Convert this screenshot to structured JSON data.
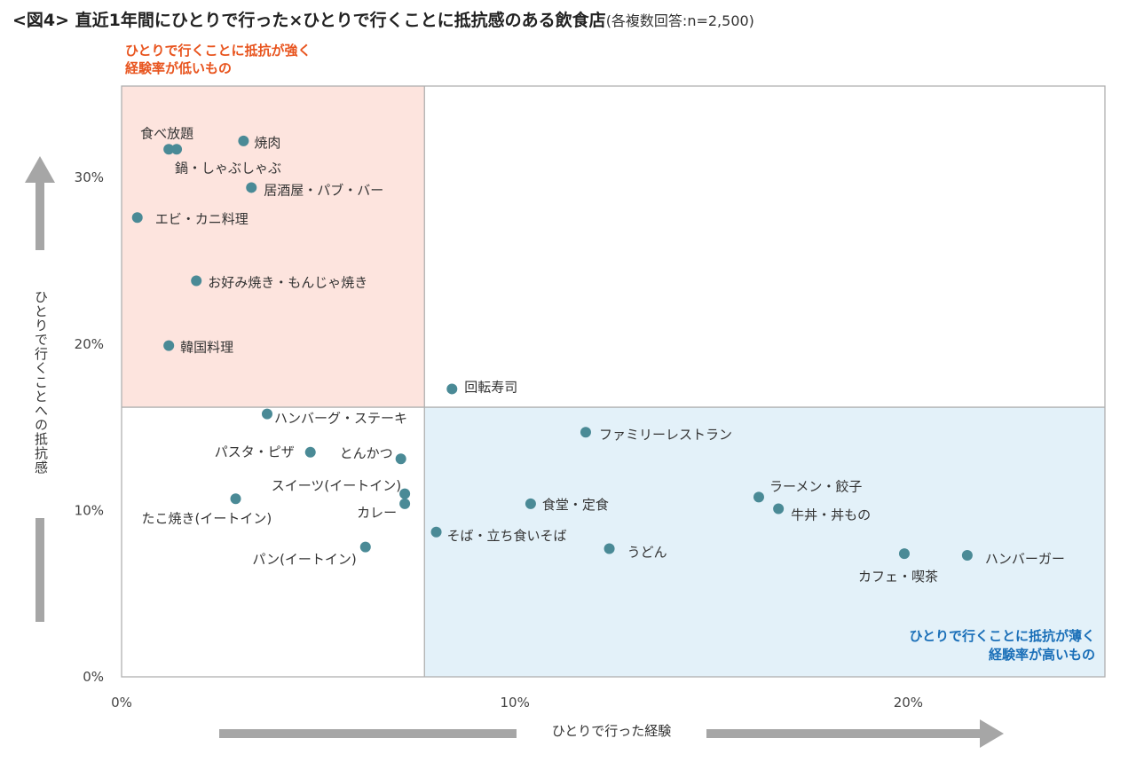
{
  "title": {
    "main": "<図4> 直近1年間にひとりで行った×ひとりで行くことに抵抗感のある飲食店",
    "note": "(各複数回答:n=2,500)"
  },
  "colors": {
    "marker": "#4a8a96",
    "upper_left_fill": "#fde4de",
    "lower_right_fill": "#e3f1f9",
    "arrow": "#a6a6a6",
    "red_text": "#e8541e",
    "blue_text": "#1a6fb8"
  },
  "quadrant_labels": {
    "upper_left": [
      "ひとりで行くことに抵抗が強く",
      "経験率が低いもの"
    ],
    "lower_right": [
      "ひとりで行くことに抵抗が薄く",
      "経験率が高いもの"
    ]
  },
  "chart_data": {
    "type": "scatter",
    "xlabel": "ひとりで行った経験",
    "ylabel": "ひとりで行くことへの抵抗感",
    "xlim": [
      0,
      25
    ],
    "ylim": [
      0,
      35.5
    ],
    "x_divider": 7.7,
    "y_divider": 16.2,
    "xticks": [
      "0%",
      "10%",
      "20%"
    ],
    "yticks": [
      "0%",
      "10%",
      "20%",
      "30%"
    ],
    "points": [
      {
        "label": "食べ放題",
        "x": 1.2,
        "y": 31.7
      },
      {
        "label": "鍋・しゃぶしゃぶ",
        "x": 1.4,
        "y": 31.7
      },
      {
        "label": "焼肉",
        "x": 3.1,
        "y": 32.2
      },
      {
        "label": "居酒屋・パブ・バー",
        "x": 3.3,
        "y": 29.4
      },
      {
        "label": "エビ・カニ料理",
        "x": 0.4,
        "y": 27.6
      },
      {
        "label": "お好み焼き・もんじゃ焼き",
        "x": 1.9,
        "y": 23.8
      },
      {
        "label": "韓国料理",
        "x": 1.2,
        "y": 19.9
      },
      {
        "label": "回転寿司",
        "x": 8.4,
        "y": 17.3
      },
      {
        "label": "ハンバーグ・ステーキ",
        "x": 3.7,
        "y": 15.8
      },
      {
        "label": "パスタ・ピザ",
        "x": 4.8,
        "y": 13.5
      },
      {
        "label": "とんかつ",
        "x": 7.1,
        "y": 13.1
      },
      {
        "label": "スイーツ(イートイン)",
        "x": 7.2,
        "y": 11.0
      },
      {
        "label": "カレー",
        "x": 7.2,
        "y": 10.4
      },
      {
        "label": "たこ焼き(イートイン)",
        "x": 2.9,
        "y": 10.7
      },
      {
        "label": "パン(イートイン)",
        "x": 6.2,
        "y": 7.8
      },
      {
        "label": "ファミリーレストラン",
        "x": 11.8,
        "y": 14.7
      },
      {
        "label": "食堂・定食",
        "x": 10.4,
        "y": 10.4
      },
      {
        "label": "そば・立ち食いそば",
        "x": 8.0,
        "y": 8.7
      },
      {
        "label": "うどん",
        "x": 12.4,
        "y": 7.7
      },
      {
        "label": "ラーメン・餃子",
        "x": 16.2,
        "y": 10.8
      },
      {
        "label": "牛丼・丼もの",
        "x": 16.7,
        "y": 10.1
      },
      {
        "label": "カフェ・喫茶",
        "x": 19.9,
        "y": 7.4
      },
      {
        "label": "ハンバーガー",
        "x": 21.5,
        "y": 7.3
      }
    ]
  }
}
